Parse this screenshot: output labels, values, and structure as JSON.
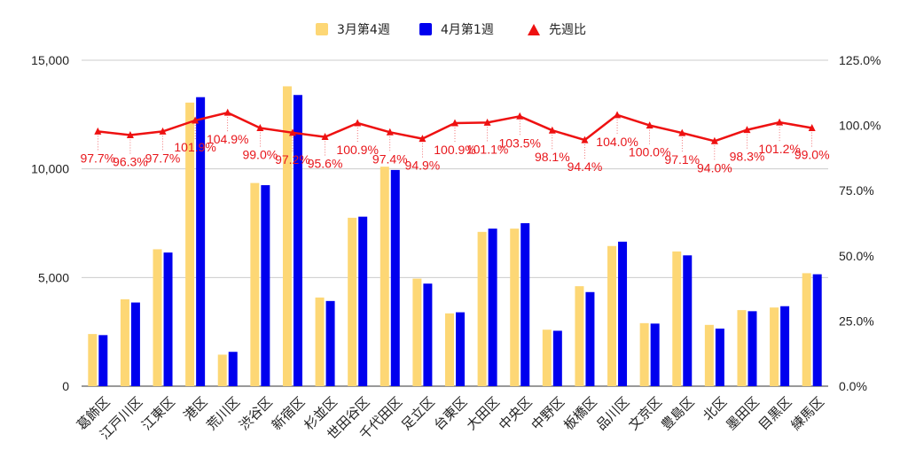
{
  "chart_data": {
    "type": "bar",
    "categories": [
      "葛飾区",
      "江戸川区",
      "江東区",
      "港区",
      "荒川区",
      "渋谷区",
      "新宿区",
      "杉並区",
      "世田谷区",
      "千代田区",
      "足立区",
      "台東区",
      "大田区",
      "中央区",
      "中野区",
      "板橋区",
      "品川区",
      "文京区",
      "豊島区",
      "北区",
      "墨田区",
      "目黒区",
      "練馬区"
    ],
    "series": [
      {
        "name": "3月第4週",
        "type": "bar",
        "axis": "left",
        "color": "#fdd775",
        "values": [
          2400,
          4000,
          6300,
          13050,
          1450,
          9350,
          13800,
          4080,
          7750,
          10100,
          4950,
          3350,
          7100,
          7250,
          2600,
          4600,
          6450,
          2900,
          6200,
          2820,
          3500,
          3620,
          5200
        ]
      },
      {
        "name": "4月第1週",
        "type": "bar",
        "axis": "left",
        "color": "#0000ee",
        "values": [
          2350,
          3850,
          6150,
          13300,
          1580,
          9250,
          13400,
          3920,
          7800,
          9950,
          4720,
          3400,
          7250,
          7500,
          2550,
          4330,
          6650,
          2880,
          6020,
          2650,
          3450,
          3680,
          5150
        ]
      },
      {
        "name": "先週比",
        "type": "line",
        "axis": "right",
        "color": "#ee1111",
        "values": [
          97.7,
          96.3,
          97.7,
          101.9,
          104.9,
          99.0,
          97.2,
          95.6,
          100.9,
          97.4,
          94.9,
          100.9,
          101.1,
          103.5,
          98.1,
          94.4,
          104.0,
          100.0,
          97.1,
          94.0,
          98.3,
          101.2,
          99.0
        ],
        "labels": [
          "97.7%",
          "96.3%",
          "97.7%",
          "101.9%",
          "104.9%",
          "99.0%",
          "97.2%",
          "95.6%",
          "100.9%",
          "97.4%",
          "94.9%",
          "100.9%",
          "101.1%",
          "103.5%",
          "98.1%",
          "94.4%",
          "104.0%",
          "100.0%",
          "97.1%",
          "94.0%",
          "98.3%",
          "101.2%",
          "99.0%"
        ]
      }
    ],
    "y_left": {
      "ylim": [
        0,
        15000
      ],
      "ticks": [
        "0",
        "5,000",
        "10,000",
        "15,000"
      ],
      "tick_values": [
        0,
        5000,
        10000,
        15000
      ]
    },
    "y_right": {
      "ylim": [
        0,
        125
      ],
      "ticks": [
        "0.0%",
        "25.0%",
        "50.0%",
        "75.0%",
        "100.0%",
        "125.0%"
      ],
      "tick_values": [
        0,
        25,
        50,
        75,
        100,
        125
      ]
    },
    "legend_position": "top-center",
    "grid": true,
    "title": "",
    "xlabel": "",
    "ylabel": ""
  }
}
